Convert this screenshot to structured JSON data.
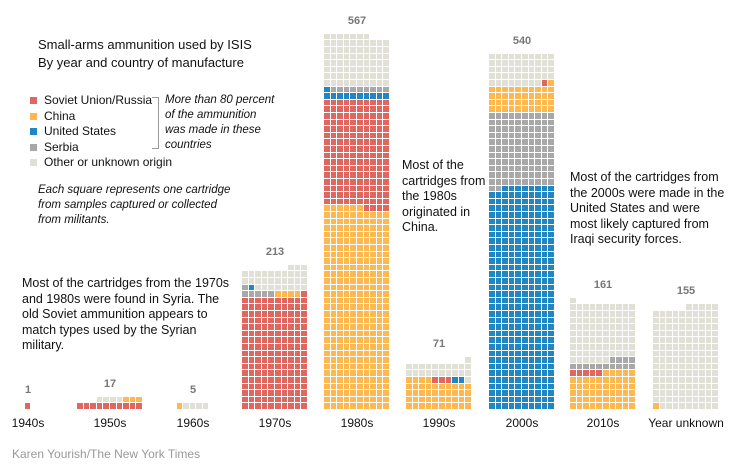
{
  "title": "Small-arms ammunition used by ISIS",
  "subtitle": "By year and country of manufacture",
  "legend": [
    {
      "key": "soviet",
      "label": "Soviet Union/Russia",
      "color": "#e0675f"
    },
    {
      "key": "china",
      "label": "China",
      "color": "#fdb94f"
    },
    {
      "key": "us",
      "label": "United States",
      "color": "#2087c4"
    },
    {
      "key": "serbia",
      "label": "Serbia",
      "color": "#a8a8a8"
    },
    {
      "key": "other",
      "label": "Other or unknown origin",
      "color": "#e0e0d6"
    }
  ],
  "bracket_note": "More than 80 percent of the ammunition was made in these countries",
  "square_note": "Each square represents one cartridge from samples captured or collected from militants.",
  "annotations": {
    "syria": "Most of the cartridges from the 1970s and 1980s were found in Syria. The old Soviet ammunition appears to match types used by the Syrian military.",
    "china": "Most of the cartridges from the 1980s originated in China.",
    "us": "Most of the cartridges from the 2000s were made in the United States and were most likely captured from Iraqi security forces."
  },
  "credit": "Karen Yourish/The New York Times",
  "chart_data": {
    "type": "waffle",
    "columns_per_bar": 10,
    "units": "cartridges",
    "categories": [
      "1940s",
      "1950s",
      "1960s",
      "1970s",
      "1980s",
      "1990s",
      "2000s",
      "2010s",
      "Year unknown"
    ],
    "bars": [
      {
        "label": "1940s",
        "total": "1",
        "segments": [
          [
            "soviet",
            1
          ]
        ]
      },
      {
        "label": "1950s",
        "total": "17",
        "segments": [
          [
            "soviet",
            10
          ],
          [
            "china",
            3
          ],
          [
            "other",
            4
          ]
        ]
      },
      {
        "label": "1960s",
        "total": "5",
        "segments": [
          [
            "china",
            1
          ],
          [
            "other",
            4
          ]
        ]
      },
      {
        "label": "1970s",
        "total": "213",
        "segments": [
          [
            "soviet",
            171
          ],
          [
            "china",
            4
          ],
          [
            "serbia",
            6
          ],
          [
            "us",
            1
          ],
          [
            "other",
            31
          ]
        ]
      },
      {
        "label": "1980s",
        "total": "567",
        "segments": [
          [
            "china",
            306
          ],
          [
            "soviet",
            164
          ],
          [
            "us",
            11
          ],
          [
            "serbia",
            9
          ],
          [
            "other",
            77
          ]
        ]
      },
      {
        "label": "1990s",
        "total": "71",
        "segments": [
          [
            "china",
            44
          ],
          [
            "soviet",
            3
          ],
          [
            "us",
            2
          ],
          [
            "other",
            22
          ]
        ]
      },
      {
        "label": "2000s",
        "total": "540",
        "segments": [
          [
            "us",
            338
          ],
          [
            "serbia",
            112
          ],
          [
            "china",
            41
          ],
          [
            "soviet",
            1
          ],
          [
            "other",
            48
          ]
        ]
      },
      {
        "label": "2010s",
        "total": "161",
        "segments": [
          [
            "china",
            55
          ],
          [
            "soviet",
            5
          ],
          [
            "serbia",
            14
          ],
          [
            "other",
            87
          ]
        ]
      },
      {
        "label": "Year unknown",
        "total": "155",
        "segments": [
          [
            "china",
            1
          ],
          [
            "other",
            154
          ]
        ]
      }
    ]
  }
}
